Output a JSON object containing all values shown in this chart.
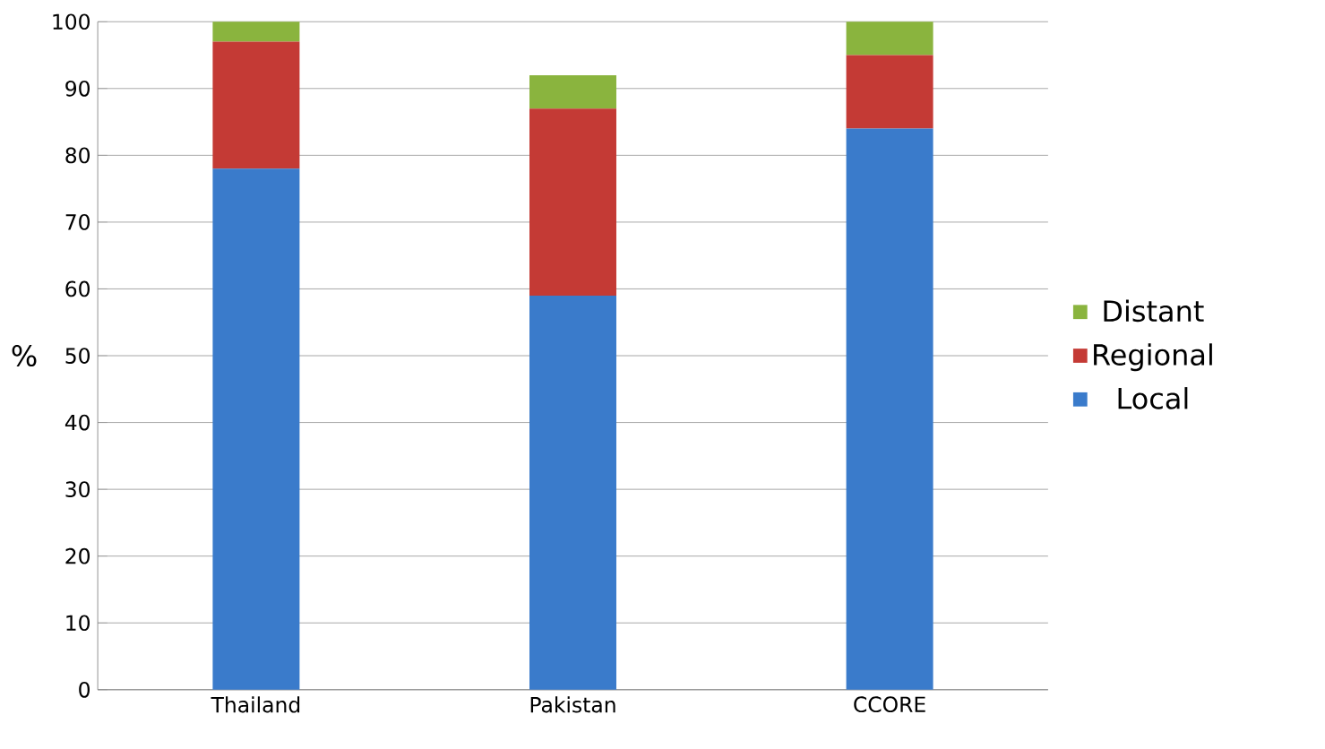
{
  "chart_data": {
    "type": "bar",
    "stacked": true,
    "ylabel": "%",
    "categories": [
      "Thailand",
      "Pakistan",
      "CCORE"
    ],
    "series": [
      {
        "name": "Local",
        "color": "#3a7bcb",
        "values": [
          78,
          59,
          84
        ]
      },
      {
        "name": "Regional",
        "color": "#c43a35",
        "values": [
          19,
          28,
          11
        ]
      },
      {
        "name": "Distant",
        "color": "#8ab43e",
        "values": [
          3,
          5,
          5
        ]
      }
    ],
    "ylim": [
      0,
      100
    ],
    "yticks": [
      0,
      10,
      20,
      30,
      40,
      50,
      60,
      70,
      80,
      90,
      100
    ],
    "grid": "y",
    "legend": "right"
  }
}
